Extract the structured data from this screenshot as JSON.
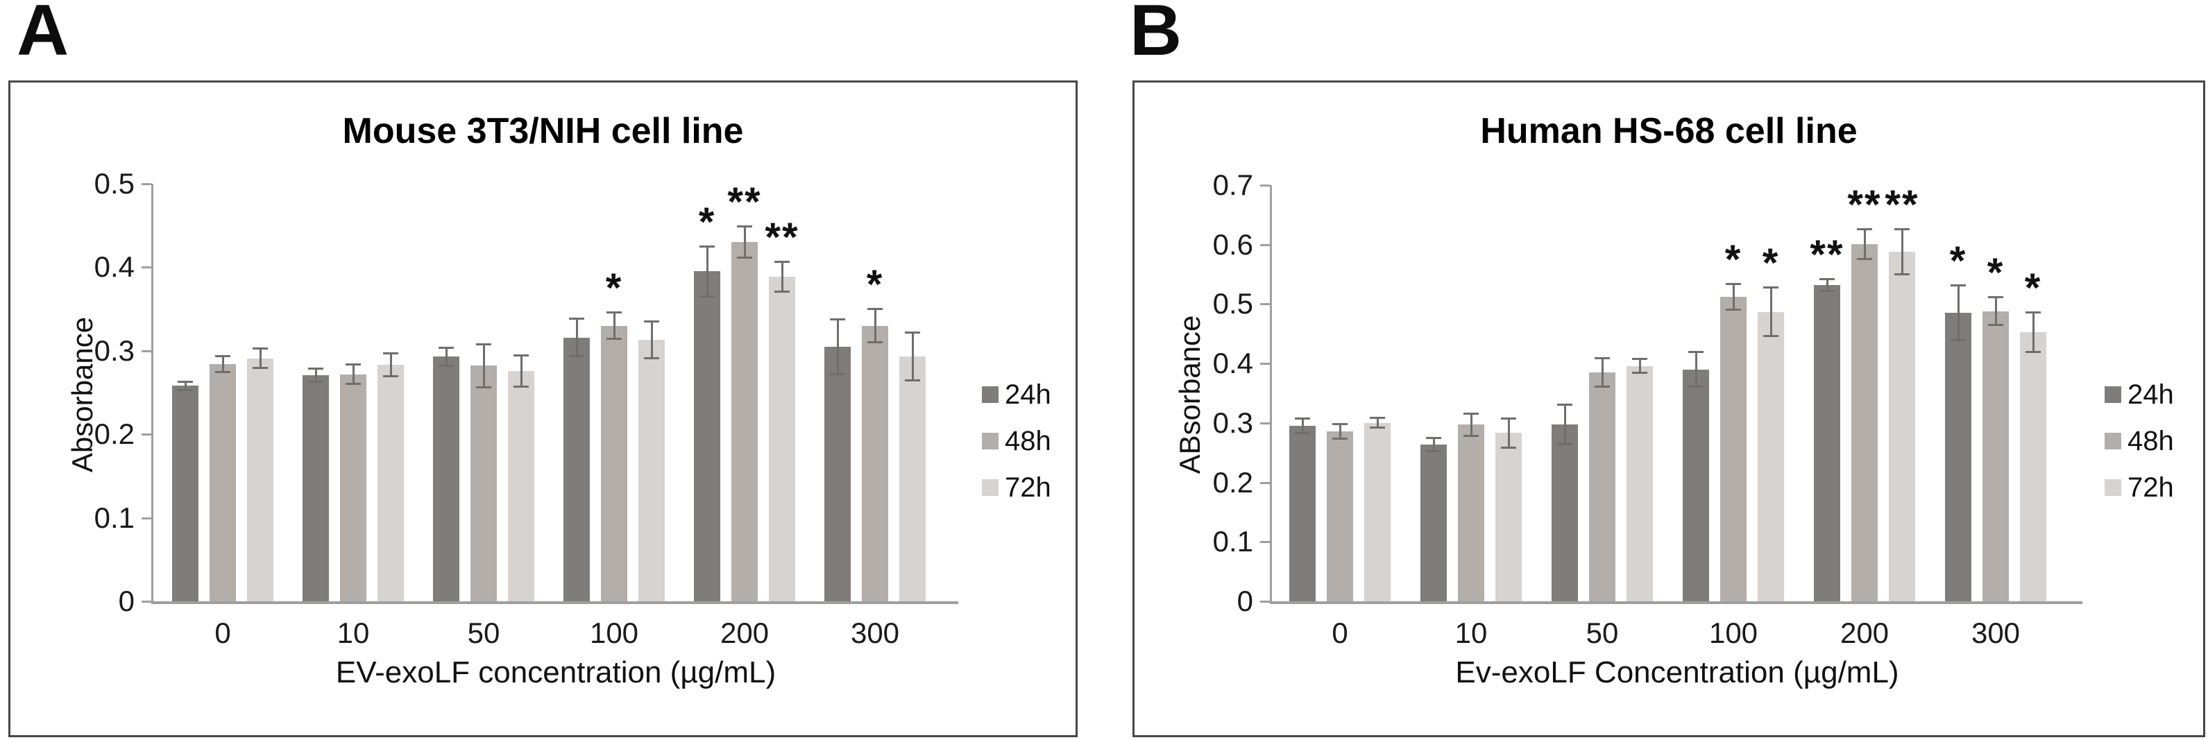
{
  "panel_labels": [
    "A",
    "B"
  ],
  "chart_data": [
    {
      "type": "bar",
      "title": "Mouse 3T3/NIH cell line",
      "xlabel": "EV-exoLF concentration (µg/mL)",
      "ylabel": "Absorbance",
      "categories": [
        "0",
        "10",
        "50",
        "100",
        "200",
        "300"
      ],
      "ylim": [
        0,
        0.5
      ],
      "yticks": [
        "0",
        "0.1",
        "0.2",
        "0.3",
        "0.4",
        "0.5"
      ],
      "grid": false,
      "legend_position": "right",
      "series": [
        {
          "name": "24h",
          "color": "#7f7d7b",
          "values": [
            0.258,
            0.271,
            0.293,
            0.316,
            0.395,
            0.305
          ],
          "errors": [
            0.006,
            0.009,
            0.012,
            0.024,
            0.031,
            0.034
          ],
          "sig": [
            "",
            "",
            "",
            "",
            "*",
            ""
          ]
        },
        {
          "name": "48h",
          "color": "#b3aeaa",
          "values": [
            0.284,
            0.272,
            0.282,
            0.33,
            0.43,
            0.33
          ],
          "errors": [
            0.011,
            0.013,
            0.027,
            0.017,
            0.02,
            0.021
          ],
          "sig": [
            "",
            "",
            "",
            "*",
            "**",
            "*"
          ]
        },
        {
          "name": "72h",
          "color": "#d6d3d0",
          "values": [
            0.291,
            0.283,
            0.276,
            0.313,
            0.389,
            0.293
          ],
          "errors": [
            0.013,
            0.015,
            0.02,
            0.023,
            0.019,
            0.03
          ],
          "sig": [
            "",
            "",
            "",
            "",
            "**",
            ""
          ]
        }
      ]
    },
    {
      "type": "bar",
      "title": "Human HS-68 cell line",
      "xlabel": "Ev-exoLF Concentration (µg/mL)",
      "ylabel": "ABsorbance",
      "categories": [
        "0",
        "10",
        "50",
        "100",
        "200",
        "300"
      ],
      "ylim": [
        0,
        0.7
      ],
      "yticks": [
        "0",
        "0.1",
        "0.2",
        "0.3",
        "0.4",
        "0.5",
        "0.6",
        "0.7"
      ],
      "grid": false,
      "legend_position": "right",
      "series": [
        {
          "name": "24h",
          "color": "#7f7d7b",
          "values": [
            0.295,
            0.264,
            0.297,
            0.39,
            0.532,
            0.485
          ],
          "errors": [
            0.014,
            0.013,
            0.035,
            0.031,
            0.012,
            0.048
          ],
          "sig": [
            "",
            "",
            "",
            "",
            "**",
            "*"
          ]
        },
        {
          "name": "48h",
          "color": "#b3aeaa",
          "values": [
            0.286,
            0.297,
            0.385,
            0.512,
            0.601,
            0.488
          ],
          "errors": [
            0.014,
            0.02,
            0.026,
            0.023,
            0.027,
            0.025
          ],
          "sig": [
            "",
            "",
            "",
            "*",
            "**",
            "*"
          ]
        },
        {
          "name": "72h",
          "color": "#d6d3d0",
          "values": [
            0.3,
            0.283,
            0.396,
            0.487,
            0.588,
            0.453
          ],
          "errors": [
            0.01,
            0.026,
            0.013,
            0.043,
            0.04,
            0.035
          ],
          "sig": [
            "",
            "",
            "",
            "*",
            "**",
            "*"
          ]
        }
      ]
    }
  ]
}
